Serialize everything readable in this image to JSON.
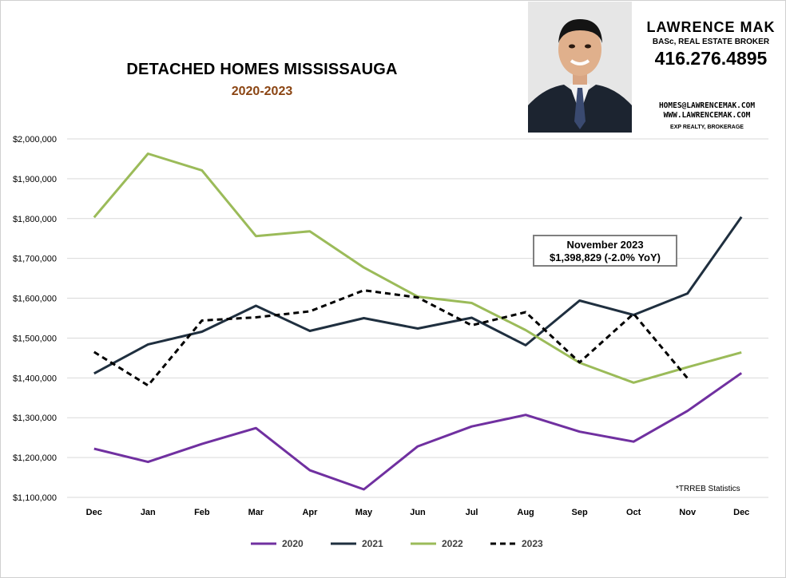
{
  "header": {
    "title": "DETACHED HOMES MISSISSAUGA",
    "subtitle": "2020-2023"
  },
  "broker": {
    "name": "LAWRENCE MAK",
    "credentials": "BASc, REAL ESTATE BROKER",
    "phone": "416.276.4895",
    "email": "HOMES@LAWRENCEMAK.COM",
    "website": "WWW.LAWRENCEMAK.COM",
    "brokerage": "EXP REALTY, BROKERAGE"
  },
  "callout": {
    "line1": "November 2023",
    "line2": "$1,398,829 (-2.0%  YoY)"
  },
  "source_note": "*TRREB Statistics",
  "colors": {
    "2020": "#7030a0",
    "2021": "#1f2f3f",
    "2022": "#9bbb59",
    "2023": "#000000",
    "grid": "#d9d9d9"
  },
  "chart_data": {
    "type": "line",
    "title": "DETACHED HOMES MISSISSAUGA",
    "subtitle": "2020-2023",
    "categories": [
      "Dec",
      "Jan",
      "Feb",
      "Mar",
      "Apr",
      "May",
      "Jun",
      "Jul",
      "Aug",
      "Sep",
      "Oct",
      "Nov",
      "Dec"
    ],
    "y_ticks": [
      "$1,100,000",
      "$1,200,000",
      "$1,300,000",
      "$1,400,000",
      "$1,500,000",
      "$1,600,000",
      "$1,700,000",
      "$1,800,000",
      "$1,900,000",
      "$2,000,000"
    ],
    "ylim": [
      1100000,
      2000000
    ],
    "grid": true,
    "legend_position": "bottom",
    "series": [
      {
        "name": "2020",
        "style": "solid",
        "values": [
          1222000,
          1189000,
          1234000,
          1274000,
          1168000,
          1120000,
          1228000,
          1278000,
          1307000,
          1265000,
          1240000,
          1317000,
          1412000
        ]
      },
      {
        "name": "2021",
        "style": "solid",
        "values": [
          1411000,
          1484000,
          1516000,
          1581000,
          1518000,
          1550000,
          1524000,
          1551000,
          1482000,
          1594000,
          1558000,
          1612000,
          1804000
        ]
      },
      {
        "name": "2022",
        "style": "solid",
        "values": [
          1803000,
          1963000,
          1921000,
          1756000,
          1768000,
          1677000,
          1604000,
          1588000,
          1520000,
          1438000,
          1388000,
          1427000,
          1464000
        ]
      },
      {
        "name": "2023",
        "style": "dashed",
        "values": [
          1465000,
          1381000,
          1544000,
          1552000,
          1567000,
          1620000,
          1602000,
          1532000,
          1565000,
          1439000,
          1561000,
          1399000,
          null
        ]
      }
    ]
  }
}
